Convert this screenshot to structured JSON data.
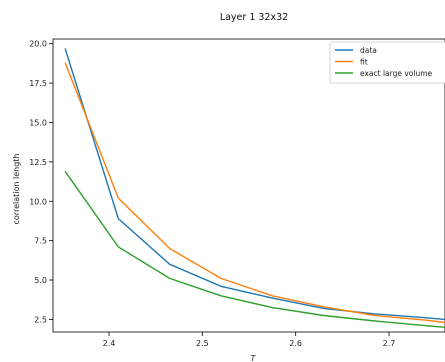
{
  "chart_data": {
    "type": "line",
    "title": "Layer 1 32x32",
    "xlabel": "T",
    "ylabel": "correlation length",
    "xlim": [
      2.34,
      2.76
    ],
    "ylim": [
      1.7,
      20.3
    ],
    "xticks": [
      2.4,
      2.5,
      2.6,
      2.7
    ],
    "yticks": [
      2.5,
      5.0,
      7.5,
      10.0,
      12.5,
      15.0,
      17.5,
      20.0
    ],
    "xtick_labels": [
      "2.4",
      "2.5",
      "2.6",
      "2.7"
    ],
    "ytick_labels": [
      "2.5",
      "5.0",
      "7.5",
      "10.0",
      "12.5",
      "15.0",
      "17.5",
      "20.0"
    ],
    "grid": false,
    "legend": "top-right",
    "x": [
      2.353,
      2.41,
      2.465,
      2.52,
      2.575,
      2.63,
      2.685,
      2.74,
      2.76
    ],
    "series": [
      {
        "name": "data",
        "color": "#1f77b4",
        "values": [
          19.7,
          8.9,
          6.0,
          4.6,
          3.85,
          3.2,
          2.85,
          2.6,
          2.5
        ]
      },
      {
        "name": "fit",
        "color": "#ff7f0e",
        "values": [
          18.8,
          10.2,
          7.0,
          5.1,
          4.0,
          3.3,
          2.75,
          2.45,
          2.3
        ]
      },
      {
        "name": "exact large volume",
        "color": "#2ca02c",
        "values": [
          11.9,
          7.1,
          5.1,
          4.0,
          3.25,
          2.75,
          2.4,
          2.1,
          2.0
        ]
      }
    ]
  }
}
